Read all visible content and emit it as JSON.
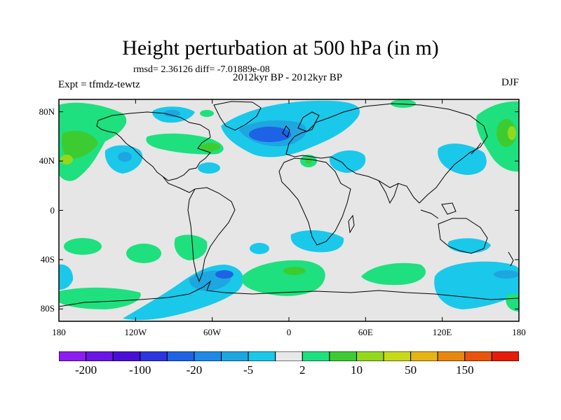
{
  "title": "Height perturbation at 500 hPa (in m)",
  "stats": "rmsd= 2.36126 diff= -7.01889e-08",
  "period": "2012kyr BP - 2012kyr BP",
  "experiment": "Expt = tfmdz-tewtz",
  "season": "DJF",
  "map": {
    "lon_ticks": [
      {
        "value": -180,
        "label": "180"
      },
      {
        "value": -120,
        "label": "120W"
      },
      {
        "value": -60,
        "label": "60W"
      },
      {
        "value": 0,
        "label": "0"
      },
      {
        "value": 60,
        "label": "60E"
      },
      {
        "value": 120,
        "label": "120E"
      },
      {
        "value": 180,
        "label": "180"
      }
    ],
    "lat_ticks": [
      {
        "value": 80,
        "label": "80N"
      },
      {
        "value": 40,
        "label": "40N"
      },
      {
        "value": 0,
        "label": "0"
      },
      {
        "value": -40,
        "label": "40S"
      },
      {
        "value": -80,
        "label": "80S"
      }
    ],
    "lat_range": [
      -90,
      90
    ],
    "lon_range": [
      -180,
      180
    ],
    "background_color": "#e6e6e6"
  },
  "colorbar": {
    "colors": [
      "#8c1cf0",
      "#6a14e6",
      "#4a0fd6",
      "#2d35e0",
      "#1e62e6",
      "#1f8ae6",
      "#1da6e0",
      "#1ac8ea",
      "#e8e8e8",
      "#1ee07e",
      "#3ccc32",
      "#94d81c",
      "#c8d81a",
      "#e6b414",
      "#e8880e",
      "#e8540a",
      "#e61c08"
    ],
    "labels": [
      {
        "boundary": 1,
        "label": "-200"
      },
      {
        "boundary": 3,
        "label": "-100"
      },
      {
        "boundary": 5,
        "label": "-20"
      },
      {
        "boundary": 7,
        "label": "-5"
      },
      {
        "boundary": 9,
        "label": "2"
      },
      {
        "boundary": 11,
        "label": "10"
      },
      {
        "boundary": 13,
        "label": "50"
      },
      {
        "boundary": 15,
        "label": "150"
      }
    ]
  },
  "colors": {
    "neg_light": "#1ac8ea",
    "neg_mid": "#1da6e0",
    "neg_dark": "#1e62e6",
    "pos_light": "#1ee07e",
    "pos_mid": "#3ccc32",
    "pos_strong": "#94d81c",
    "coast": "#000000"
  }
}
